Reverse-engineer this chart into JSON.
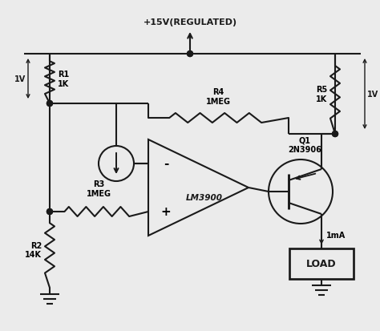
{
  "bg": "#ebebeb",
  "lc": "#1a1a1a",
  "lw": 1.5,
  "supply_text": "+15V(REGULATED)",
  "r1_label": "R1\n1K",
  "r2_label": "R2\n14K",
  "r3_label": "R3\n1MEG",
  "r4_label": "R4\n1MEG",
  "r5_label": "R5\n1K",
  "q1_label": "Q1\n2N3906",
  "ic_label": "LM3900",
  "load_label": "LOAD",
  "v1_label": "1V",
  "v2_label": "1V",
  "ima_label": "1mA",
  "minus_label": "-",
  "plus_label": "+"
}
